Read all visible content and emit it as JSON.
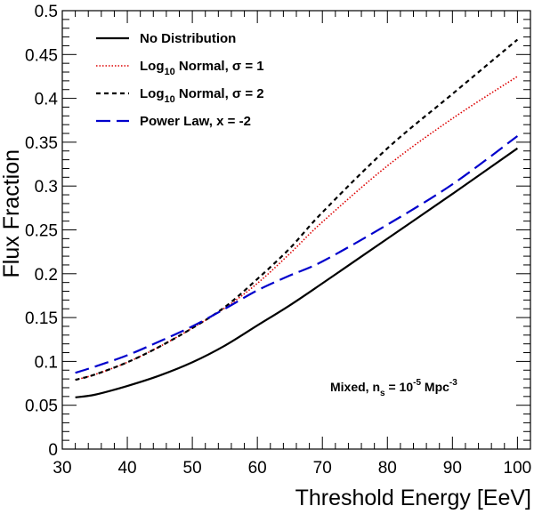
{
  "chart_data": {
    "type": "line",
    "xlabel": "Threshold Energy [EeV]",
    "ylabel": "Flux Fraction",
    "xlim": [
      30,
      102
    ],
    "ylim": [
      0,
      0.5
    ],
    "xticks": [
      30,
      40,
      50,
      60,
      70,
      80,
      90,
      100
    ],
    "xtick_labels": [
      "30",
      "40",
      "50",
      "60",
      "70",
      "80",
      "90",
      "100"
    ],
    "yticks": [
      0,
      0.05,
      0.1,
      0.15,
      0.2,
      0.25,
      0.3,
      0.35,
      0.4,
      0.45,
      0.5
    ],
    "ytick_labels": [
      "0",
      "0.05",
      "0.1",
      "0.15",
      "0.2",
      "0.25",
      "0.3",
      "0.35",
      "0.4",
      "0.45",
      "0.5"
    ],
    "legend_position": "top-left",
    "annotation": {
      "prefix": "Mixed, n",
      "sub": "s",
      "mid": " = 10",
      "sup": "-5",
      "suffix": " Mpc",
      "sup2": "-3"
    },
    "x": [
      32,
      35,
      40,
      45,
      50,
      55,
      60,
      65,
      70,
      80,
      90,
      100
    ],
    "series": [
      {
        "name": "No Distribution",
        "legend": {
          "main": "No Distribution"
        },
        "color": "#000000",
        "dash": "solid",
        "values": [
          0.059,
          0.062,
          0.072,
          0.084,
          0.099,
          0.118,
          0.141,
          0.164,
          0.189,
          0.24,
          0.291,
          0.343
        ]
      },
      {
        "name": "Log10 Normal, σ = 1",
        "legend": {
          "main": "Log",
          "sub": "10",
          "rest": " Normal, σ = 1"
        },
        "color": "#dd0000",
        "dash": "dotted",
        "values": [
          0.079,
          0.085,
          0.099,
          0.117,
          0.138,
          0.161,
          0.189,
          0.223,
          0.259,
          0.323,
          0.377,
          0.425
        ]
      },
      {
        "name": "Log10 Normal, σ = 2",
        "legend": {
          "main": "Log",
          "sub": "10",
          "rest": " Normal, σ = 2"
        },
        "color": "#000000",
        "dash": "short-dash",
        "values": [
          0.079,
          0.085,
          0.099,
          0.117,
          0.138,
          0.162,
          0.194,
          0.229,
          0.27,
          0.343,
          0.405,
          0.467
        ]
      },
      {
        "name": "Power Law, x = -2",
        "legend": {
          "main": "Power Law, x = -2"
        },
        "color": "#0000cc",
        "dash": "long-dash",
        "values": [
          0.087,
          0.094,
          0.107,
          0.123,
          0.14,
          0.16,
          0.181,
          0.198,
          0.214,
          0.256,
          0.302,
          0.357
        ]
      }
    ]
  }
}
